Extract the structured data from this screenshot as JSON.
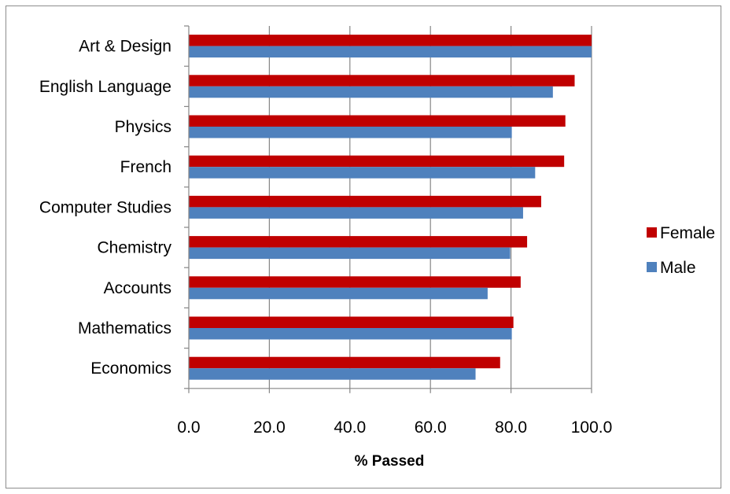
{
  "chart_data": {
    "type": "bar",
    "orientation": "horizontal",
    "categories": [
      "Art & Design",
      "English Language",
      "Physics",
      "French",
      "Computer Studies",
      "Chemistry",
      "Accounts",
      "Mathematics",
      "Economics"
    ],
    "series": [
      {
        "name": "Female",
        "color": "#c00000",
        "values": [
          100.0,
          95.8,
          93.5,
          93.2,
          87.5,
          84.0,
          82.4,
          80.6,
          77.3
        ]
      },
      {
        "name": "Male",
        "color": "#4f81bd",
        "values": [
          100.0,
          90.4,
          80.2,
          86.0,
          83.0,
          79.8,
          74.2,
          80.2,
          71.2
        ]
      }
    ],
    "xlabel": "% Passed",
    "ylabel": "",
    "xlim": [
      0,
      100
    ],
    "x_ticks": [
      "0.0",
      "20.0",
      "40.0",
      "60.0",
      "80.0",
      "100.0"
    ],
    "grid": "vertical",
    "legend_position": "right"
  }
}
